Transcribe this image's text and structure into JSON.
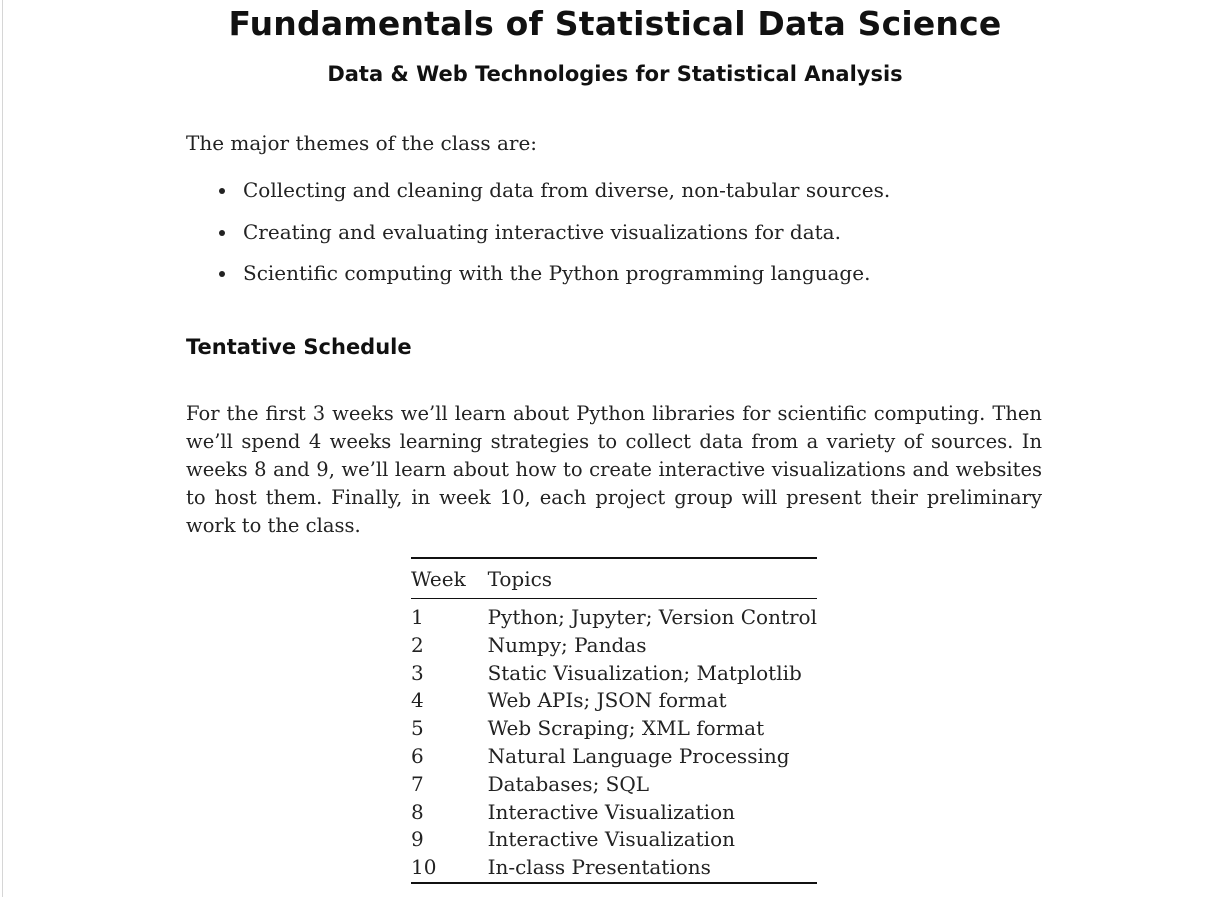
{
  "document": {
    "title": "Fundamentals of Statistical Data Science",
    "subtitle": "Data & Web Technologies for Statistical Analysis",
    "intro": "The major themes of the class are:",
    "themes": [
      "Collecting and cleaning data from diverse, non-tabular sources.",
      "Creating and evaluating interactive visualizations for data.",
      "Scientific computing with the Python programming language."
    ],
    "schedule": {
      "heading": "Tentative Schedule",
      "paragraph": "For the first 3 weeks we’ll learn about Python libraries for scientific computing. Then we’ll spend 4 weeks learning strategies to collect data from a variety of sources. In weeks 8 and 9, we’ll learn about how to create interactive visualizations and websites to host them. Finally, in week 10, each project group will present their preliminary work to the class.",
      "table": {
        "headers": [
          "Week",
          "Topics"
        ],
        "rows": [
          [
            "1",
            "Python; Jupyter; Version Control"
          ],
          [
            "2",
            "Numpy; Pandas"
          ],
          [
            "3",
            "Static Visualization; Matplotlib"
          ],
          [
            "4",
            "Web APIs; JSON format"
          ],
          [
            "5",
            "Web Scraping; XML format"
          ],
          [
            "6",
            "Natural Language Processing"
          ],
          [
            "7",
            "Databases; SQL"
          ],
          [
            "8",
            "Interactive Visualization"
          ],
          [
            "9",
            "Interactive Visualization"
          ],
          [
            "10",
            "In-class Presentations"
          ]
        ]
      }
    }
  }
}
